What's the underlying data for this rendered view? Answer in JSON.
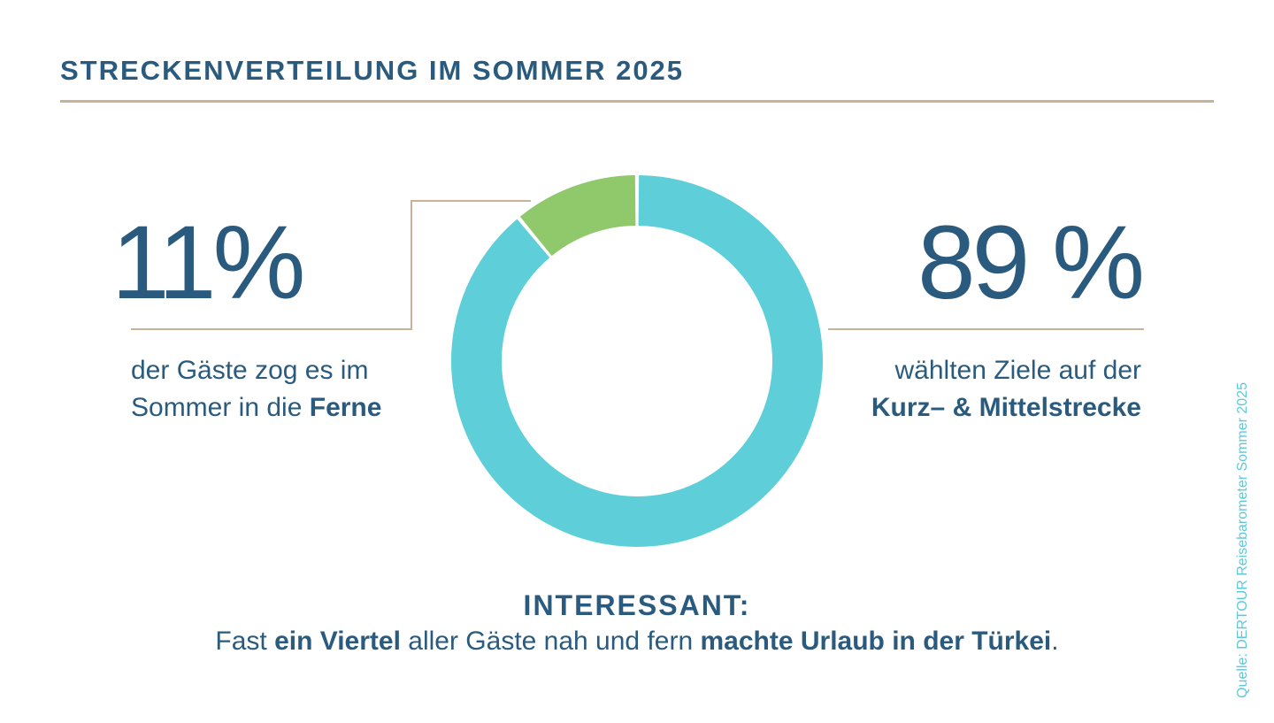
{
  "title": "STRECKENVERTEILUNG IM SOMMER 2025",
  "colors": {
    "primary_text": "#2a5b7e",
    "rule": "#c8b297",
    "short_medium_haul": "#5ecfd8",
    "long_haul": "#90c86c",
    "source_text": "#5ec8d8"
  },
  "left_stat": {
    "value": "11%",
    "line1": "der Gäste zog es im",
    "line2_prefix": "Sommer in die ",
    "line2_bold": "Ferne"
  },
  "right_stat": {
    "value": "89 %",
    "line1": "wählten Ziele auf der",
    "line2_bold": "Kurz– & Mittelstrecke"
  },
  "chart_data": {
    "type": "pie",
    "donut": true,
    "values": [
      89,
      11
    ],
    "colors": [
      "#5ecfd8",
      "#90c86c"
    ]
  },
  "interessant": {
    "heading": "INTERESSANT:",
    "p1": "Fast ",
    "b1": "ein Viertel",
    "p2": " aller Gäste nah und fern ",
    "b2": "machte Urlaub in der Türkei",
    "p3": "."
  },
  "source": "Quelle: DERTOUR Reisebarometer Sommer 2025"
}
